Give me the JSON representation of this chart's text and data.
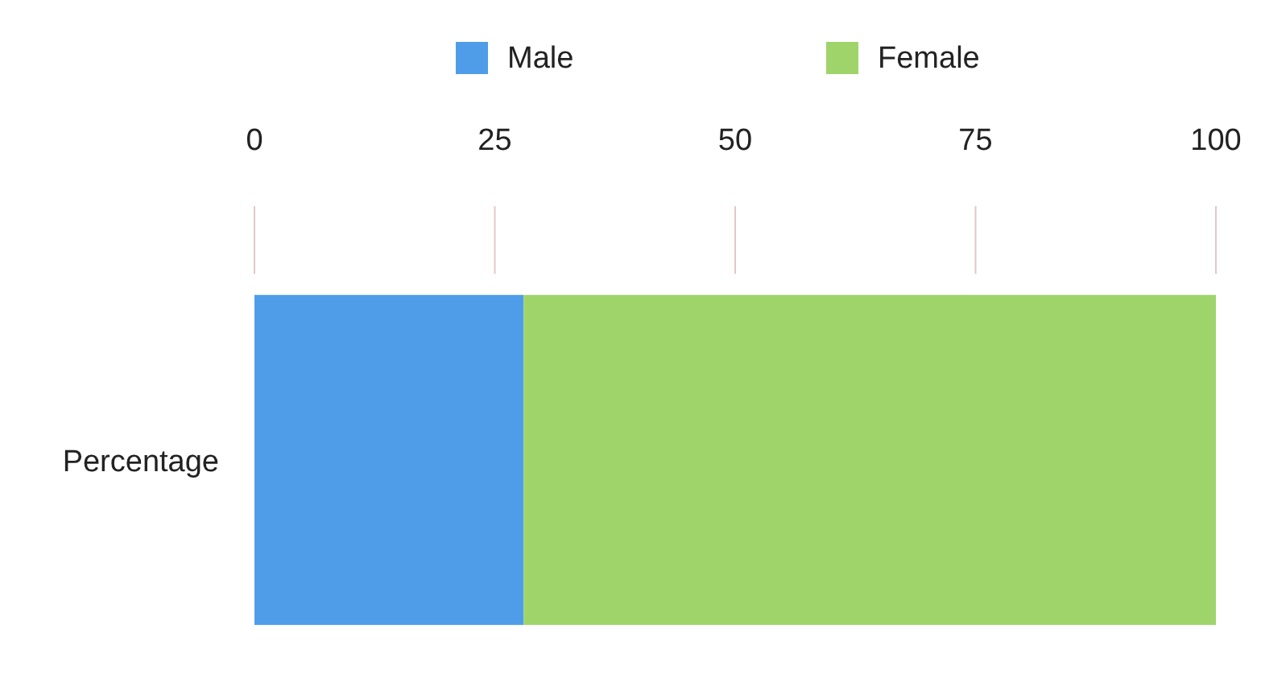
{
  "chart_data": {
    "type": "bar",
    "orientation": "horizontal",
    "stacked": true,
    "categories": [
      "Percentage"
    ],
    "series": [
      {
        "name": "Male",
        "color": "#4f9de8",
        "values": [
          28
        ]
      },
      {
        "name": "Female",
        "color": "#9fd46a",
        "values": [
          72
        ]
      }
    ],
    "xlim": [
      0,
      100
    ],
    "xticks": [
      0,
      25,
      50,
      75,
      100
    ],
    "legend": "top"
  }
}
